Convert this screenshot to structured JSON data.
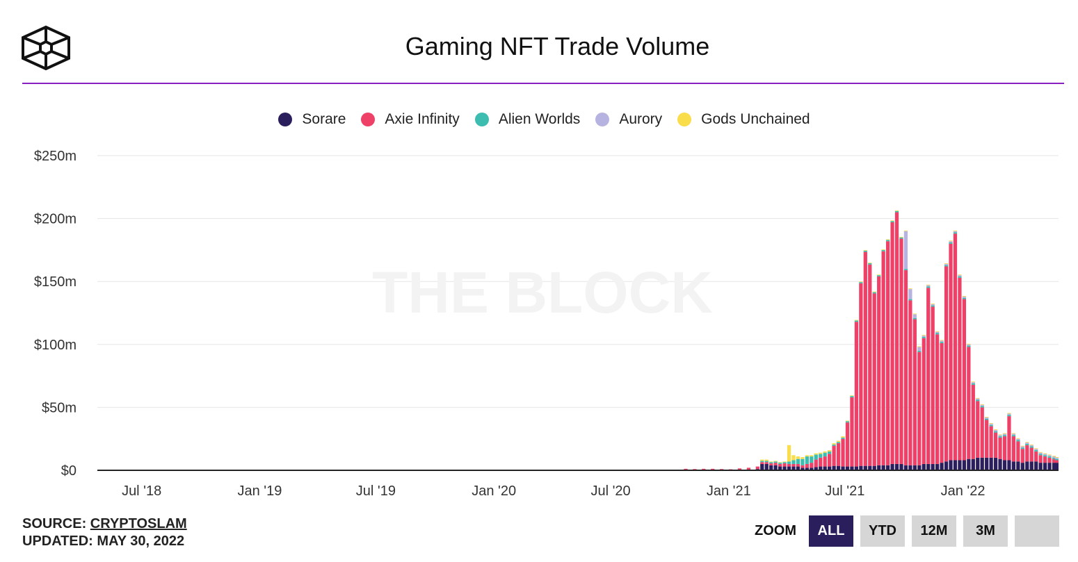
{
  "header": {
    "title": "Gaming NFT Trade Volume"
  },
  "watermark": "THE BLOCK",
  "colors": {
    "accent_line": "#8a1fbf",
    "sorare": "#2a1f5c",
    "axie": "#ef4068",
    "alien": "#3dbcb0",
    "aurory": "#b7b3e1",
    "gods": "#f9dd4b"
  },
  "legend": [
    {
      "label": "Sorare",
      "color": "#2a1f5c"
    },
    {
      "label": "Axie Infinity",
      "color": "#ef4068"
    },
    {
      "label": "Alien Worlds",
      "color": "#3dbcb0"
    },
    {
      "label": "Aurory",
      "color": "#b7b3e1"
    },
    {
      "label": "Gods Unchained",
      "color": "#f9dd4b"
    }
  ],
  "footer": {
    "source_label": "SOURCE:",
    "source_value": "CRYPTOSLAM",
    "updated_label": "UPDATED:",
    "updated_value": "MAY 30, 2022"
  },
  "zoom": {
    "label": "ZOOM",
    "buttons": [
      "ALL",
      "YTD",
      "12M",
      "3M",
      ""
    ],
    "active": "ALL"
  },
  "chart_data": {
    "type": "bar",
    "stacked": true,
    "title": "Gaming NFT Trade Volume",
    "x_unit": "weekly",
    "x_start": "2018-04-23",
    "x_end": "2022-05-30",
    "x_tick_labels": [
      "Jul '18",
      "Jan '19",
      "Jul '19",
      "Jan '20",
      "Jul '20",
      "Jan '21",
      "Jul '21",
      "Jan '22"
    ],
    "x_tick_dates": [
      "2018-07-01",
      "2019-01-01",
      "2019-07-01",
      "2020-01-01",
      "2020-07-01",
      "2021-01-01",
      "2021-07-01",
      "2022-01-01"
    ],
    "y_ticks": [
      0,
      50,
      100,
      150,
      200,
      250
    ],
    "y_tick_labels": [
      "$0",
      "$50m",
      "$100m",
      "$150m",
      "$200m",
      "$250m"
    ],
    "ylim": [
      0,
      250
    ],
    "y_unit": "$m",
    "grid": true,
    "legend_position": "top-center",
    "weeks": [
      "2020-10-26",
      "2020-11-09",
      "2020-11-23",
      "2020-12-07",
      "2020-12-21",
      "2021-01-04",
      "2021-01-18",
      "2021-02-01",
      "2021-02-15",
      "2021-02-22",
      "2021-03-01",
      "2021-03-08",
      "2021-03-15",
      "2021-03-22",
      "2021-03-29",
      "2021-04-05",
      "2021-04-12",
      "2021-04-19",
      "2021-04-26",
      "2021-05-03",
      "2021-05-10",
      "2021-05-17",
      "2021-05-24",
      "2021-05-31",
      "2021-06-07",
      "2021-06-14",
      "2021-06-21",
      "2021-06-28",
      "2021-07-05",
      "2021-07-12",
      "2021-07-19",
      "2021-07-26",
      "2021-08-02",
      "2021-08-09",
      "2021-08-16",
      "2021-08-23",
      "2021-08-30",
      "2021-09-06",
      "2021-09-13",
      "2021-09-20",
      "2021-09-27",
      "2021-10-04",
      "2021-10-11",
      "2021-10-18",
      "2021-10-25",
      "2021-11-01",
      "2021-11-08",
      "2021-11-15",
      "2021-11-22",
      "2021-11-29",
      "2021-12-06",
      "2021-12-13",
      "2021-12-20",
      "2021-12-27",
      "2022-01-03",
      "2022-01-10",
      "2022-01-17",
      "2022-01-24",
      "2022-01-31",
      "2022-02-07",
      "2022-02-14",
      "2022-02-21",
      "2022-02-28",
      "2022-03-07",
      "2022-03-14",
      "2022-03-21",
      "2022-03-28",
      "2022-04-04",
      "2022-04-11",
      "2022-04-18",
      "2022-04-25",
      "2022-05-02",
      "2022-05-09",
      "2022-05-16",
      "2022-05-23",
      "2022-05-30"
    ],
    "series": [
      {
        "name": "Sorare",
        "values": [
          0,
          0,
          0,
          0,
          0,
          0,
          0.5,
          0.5,
          1,
          5,
          5,
          4,
          4,
          3,
          3,
          3,
          3,
          3,
          2,
          2,
          2,
          2.5,
          3,
          3,
          3,
          3.5,
          3.5,
          3,
          3,
          3,
          3,
          3.5,
          3.5,
          3.5,
          3.5,
          4,
          4,
          4,
          5,
          5,
          5,
          4,
          4,
          4,
          4,
          5,
          5,
          5,
          5,
          6,
          7,
          8,
          8,
          8,
          8,
          9,
          9,
          10,
          10,
          10,
          10,
          10,
          9,
          8,
          8,
          7,
          7,
          6,
          7,
          7,
          7,
          6,
          6,
          6,
          6,
          6
        ]
      },
      {
        "name": "Axie Infinity",
        "values": [
          1.2,
          1,
          1.2,
          1.2,
          1,
          0.8,
          1,
          1.5,
          2,
          1.5,
          1.5,
          1.5,
          2,
          2,
          2.5,
          2,
          2,
          2,
          2,
          3,
          4,
          6,
          7,
          8,
          10,
          16,
          18,
          22,
          35,
          55,
          115,
          145,
          170,
          160,
          137,
          150,
          170,
          178,
          192,
          200,
          179,
          155,
          131,
          116,
          90,
          100,
          140,
          125,
          103,
          95,
          155,
          172,
          180,
          145,
          128,
          89,
          59,
          45,
          40,
          30,
          25,
          20,
          17,
          19,
          35,
          20,
          16,
          11,
          13,
          11,
          8,
          6,
          5,
          4,
          3,
          2
        ]
      },
      {
        "name": "Alien Worlds",
        "values": [
          0,
          0,
          0,
          0,
          0,
          0,
          0,
          0,
          0,
          1,
          1,
          1,
          1,
          1,
          1,
          2,
          3,
          4,
          5,
          6,
          5,
          4,
          3,
          3,
          2,
          1,
          1,
          1,
          1,
          1,
          1,
          1,
          1,
          1,
          1,
          1,
          1,
          1,
          1,
          1,
          1,
          1,
          1,
          1,
          1,
          1,
          1,
          1,
          1,
          1,
          1,
          1,
          1,
          1,
          1,
          1,
          1,
          1,
          1,
          1,
          1,
          1,
          1,
          1,
          1,
          1,
          1,
          1,
          1,
          1,
          1,
          1,
          1,
          1,
          1,
          1
        ]
      },
      {
        "name": "Aurory",
        "values": [
          0,
          0,
          0,
          0,
          0,
          0,
          0,
          0,
          0,
          0,
          0,
          0,
          0,
          0,
          0,
          0,
          0,
          0,
          0,
          0,
          0,
          0,
          0,
          0,
          0,
          0,
          0,
          0,
          0,
          0,
          0,
          0,
          0,
          0,
          0,
          0,
          0,
          0,
          0,
          0,
          0,
          30,
          8,
          3,
          3,
          1,
          1,
          1,
          1,
          1,
          1,
          1,
          1,
          1,
          1,
          1,
          1,
          1,
          1,
          1,
          1,
          1,
          1,
          1,
          1,
          1,
          1,
          1,
          1,
          1,
          1,
          1,
          1,
          1,
          1,
          1
        ]
      },
      {
        "name": "Gods Unchained",
        "values": [
          0,
          0,
          0,
          0,
          0,
          0,
          0,
          0,
          0,
          1,
          1,
          0.5,
          0.5,
          0.5,
          0.5,
          13,
          4,
          2,
          1.5,
          1,
          1,
          1,
          1,
          1,
          1,
          1,
          1,
          1,
          0.5,
          0.5,
          0.5,
          0.5,
          0.5,
          0.5,
          0.5,
          0.5,
          0.5,
          0.5,
          0.5,
          0.5,
          0.5,
          0.5,
          0.5,
          0.5,
          0.5,
          0.5,
          0.5,
          0.5,
          0.5,
          0.5,
          0.5,
          0.5,
          0.5,
          0.5,
          0.5,
          0.5,
          0.5,
          0.5,
          0.5,
          0.5,
          0.5,
          0.5,
          0.5,
          0.5,
          0.5,
          0.5,
          0.5,
          0.5,
          0.5,
          0.5,
          0.5,
          0.5,
          0.5,
          0.5,
          0.5,
          0.5
        ]
      }
    ]
  }
}
